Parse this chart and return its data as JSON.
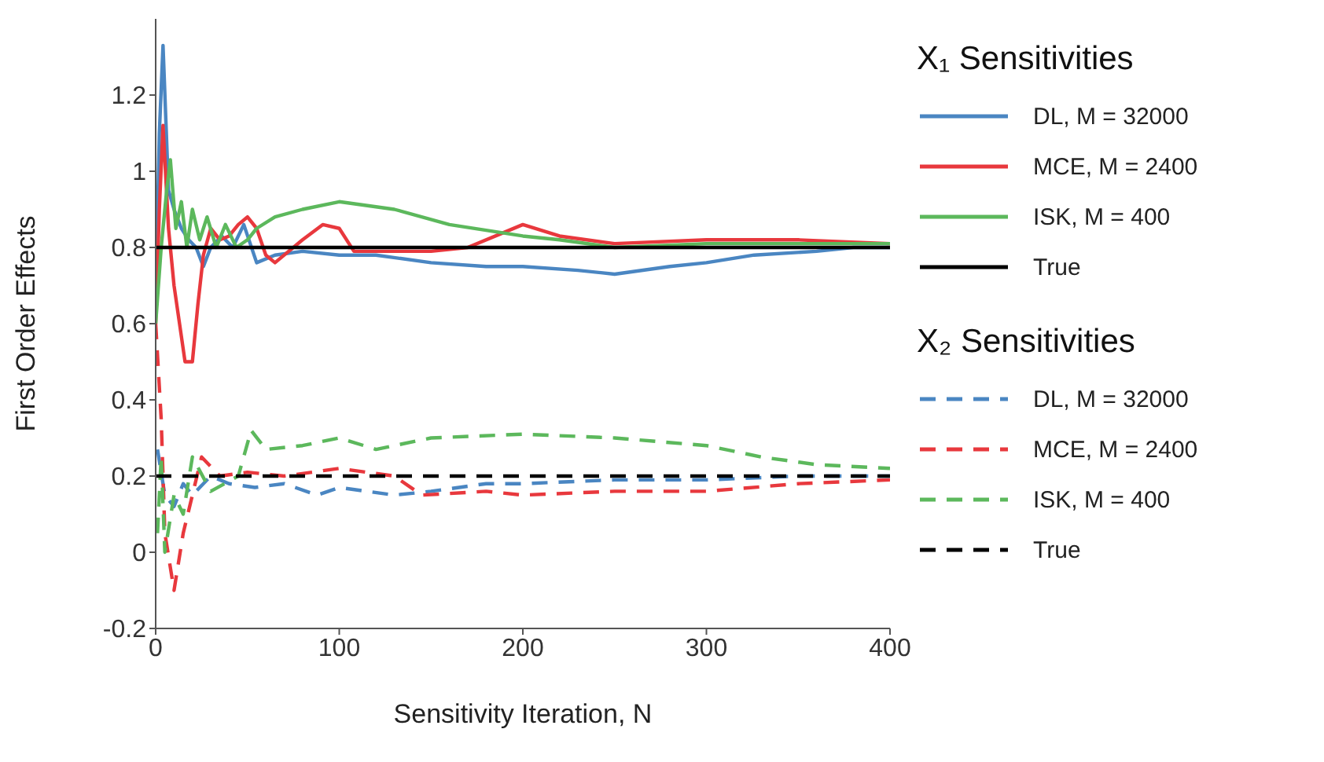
{
  "chart_data": {
    "type": "line",
    "xlabel": "Sensitivity Iteration, N",
    "ylabel": "First Order Effects",
    "xlim": [
      0,
      400
    ],
    "xticks": [
      0,
      100,
      200,
      300,
      400
    ],
    "ylim": [
      -0.2,
      1.4
    ],
    "yticks": [
      -0.2,
      0,
      0.2,
      0.4,
      0.6,
      0.8,
      1,
      1.2
    ],
    "legend": "right",
    "grid": false,
    "annotations": [
      "X₁ Sensitivities",
      "X₂ Sensitivities"
    ],
    "series": [
      {
        "name": "DL, M = 32000",
        "color": "#4a86c2",
        "line_style": "solid",
        "x": [
          0,
          2,
          4,
          7,
          10,
          14,
          18,
          22,
          26,
          30,
          36,
          42,
          48,
          55,
          65,
          80,
          100,
          120,
          150,
          180,
          200,
          230,
          250,
          280,
          300,
          326,
          360,
          380,
          400
        ],
        "values": [
          0.65,
          1.1,
          1.33,
          0.95,
          0.9,
          0.85,
          0.82,
          0.8,
          0.75,
          0.8,
          0.83,
          0.8,
          0.86,
          0.76,
          0.78,
          0.79,
          0.78,
          0.78,
          0.76,
          0.75,
          0.75,
          0.74,
          0.73,
          0.75,
          0.76,
          0.78,
          0.79,
          0.8,
          0.8
        ]
      },
      {
        "name": "MCE, M = 2400",
        "color": "#e8383d",
        "line_style": "solid",
        "x": [
          0,
          2,
          4,
          7,
          10,
          13,
          16,
          20,
          23,
          26,
          30,
          35,
          40,
          45,
          50,
          55,
          60,
          65,
          80,
          91,
          100,
          108,
          120,
          150,
          170,
          190,
          200,
          220,
          250,
          300,
          350,
          400
        ],
        "values": [
          0.6,
          0.9,
          1.12,
          0.85,
          0.7,
          0.6,
          0.5,
          0.5,
          0.65,
          0.78,
          0.85,
          0.82,
          0.83,
          0.86,
          0.88,
          0.85,
          0.78,
          0.76,
          0.82,
          0.86,
          0.85,
          0.79,
          0.79,
          0.79,
          0.8,
          0.84,
          0.86,
          0.83,
          0.81,
          0.82,
          0.82,
          0.81
        ]
      },
      {
        "name": "ISK, M = 400",
        "color": "#5cb85c",
        "line_style": "solid",
        "x": [
          0,
          3,
          6,
          8,
          11,
          14,
          17,
          20,
          24,
          28,
          33,
          38,
          44,
          50,
          55,
          65,
          80,
          100,
          130,
          160,
          200,
          220,
          250,
          300,
          350,
          400
        ],
        "values": [
          0.6,
          0.8,
          0.95,
          1.03,
          0.85,
          0.92,
          0.8,
          0.9,
          0.82,
          0.88,
          0.8,
          0.86,
          0.8,
          0.82,
          0.85,
          0.88,
          0.9,
          0.92,
          0.9,
          0.86,
          0.83,
          0.82,
          0.8,
          0.81,
          0.81,
          0.81
        ]
      },
      {
        "name": "True",
        "color": "#000000",
        "line_style": "solid",
        "x": [
          0,
          400
        ],
        "values": [
          0.8,
          0.8
        ]
      },
      {
        "name": "DL, M = 32000",
        "color": "#4a86c2",
        "line_style": "dashed",
        "x": [
          1,
          5,
          10,
          15,
          20,
          30,
          40,
          54,
          70,
          88,
          100,
          130,
          150,
          180,
          200,
          250,
          300,
          350,
          400
        ],
        "values": [
          0.27,
          0.15,
          0.12,
          0.18,
          0.15,
          0.2,
          0.18,
          0.17,
          0.18,
          0.15,
          0.17,
          0.15,
          0.16,
          0.18,
          0.18,
          0.19,
          0.19,
          0.2,
          0.2
        ]
      },
      {
        "name": "MCE, M = 2400",
        "color": "#e8383d",
        "line_style": "dashed",
        "x": [
          0,
          3,
          5,
          10,
          15,
          20,
          25,
          35,
          50,
          70,
          100,
          130,
          145,
          180,
          200,
          250,
          300,
          350,
          400
        ],
        "values": [
          0.6,
          0.35,
          0.05,
          -0.1,
          0.05,
          0.15,
          0.25,
          0.2,
          0.21,
          0.2,
          0.22,
          0.2,
          0.15,
          0.16,
          0.15,
          0.16,
          0.16,
          0.18,
          0.19
        ]
      },
      {
        "name": "ISK, M = 400",
        "color": "#5cb85c",
        "line_style": "dashed",
        "x": [
          1,
          3,
          5,
          10,
          15,
          20,
          30,
          45,
          52,
          60,
          80,
          100,
          120,
          150,
          200,
          250,
          300,
          330,
          360,
          400
        ],
        "values": [
          0.05,
          0.25,
          0,
          0.15,
          0.1,
          0.25,
          0.16,
          0.2,
          0.32,
          0.27,
          0.28,
          0.3,
          0.27,
          0.3,
          0.31,
          0.3,
          0.28,
          0.25,
          0.23,
          0.22
        ]
      },
      {
        "name": "True",
        "color": "#000000",
        "line_style": "dashed",
        "x": [
          0,
          400
        ],
        "values": [
          0.2,
          0.2
        ]
      }
    ]
  }
}
